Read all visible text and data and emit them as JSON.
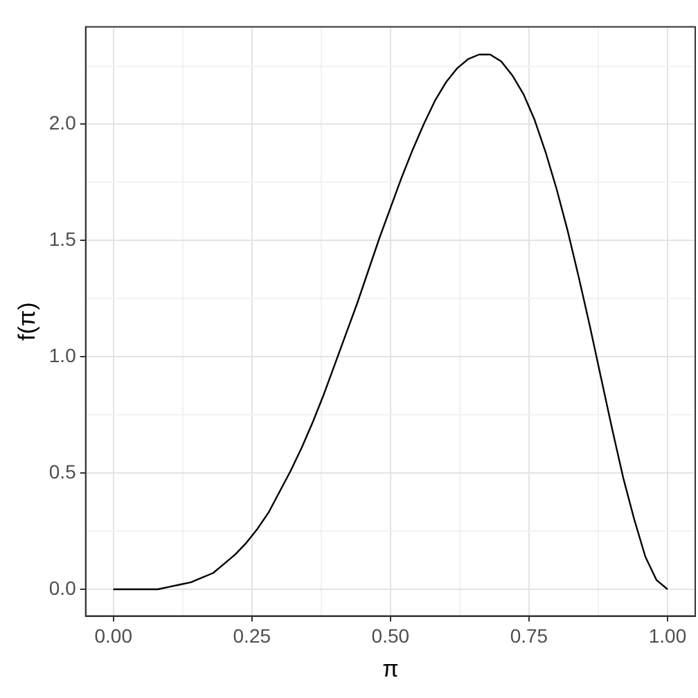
{
  "chart_data": {
    "type": "line",
    "xlabel": "π",
    "ylabel": "f(π)",
    "x": [
      0,
      0.02,
      0.04,
      0.06,
      0.08,
      0.1,
      0.12,
      0.14,
      0.16,
      0.18,
      0.2,
      0.22,
      0.24,
      0.26,
      0.28,
      0.3,
      0.32,
      0.34,
      0.36,
      0.38,
      0.4,
      0.42,
      0.44,
      0.46,
      0.48,
      0.5,
      0.52,
      0.54,
      0.56,
      0.58,
      0.6,
      0.62,
      0.64,
      0.66,
      0.68,
      0.7,
      0.72,
      0.74,
      0.76,
      0.78,
      0.8,
      0.82,
      0.84,
      0.86,
      0.88,
      0.9,
      0.92,
      0.94,
      0.96,
      0.98,
      1
    ],
    "series": [
      {
        "color": "#000000",
        "values": [
          0,
          0,
          0,
          0,
          0,
          0.01,
          0.02,
          0.03,
          0.05,
          0.07,
          0.11,
          0.15,
          0.2,
          0.26,
          0.33,
          0.42,
          0.51,
          0.61,
          0.72,
          0.84,
          0.97,
          1.1,
          1.23,
          1.37,
          1.51,
          1.64,
          1.77,
          1.89,
          2,
          2.1,
          2.18,
          2.24,
          2.28,
          2.3,
          2.3,
          2.27,
          2.21,
          2.13,
          2.02,
          1.88,
          1.72,
          1.54,
          1.34,
          1.13,
          0.91,
          0.69,
          0.48,
          0.3,
          0.14,
          0.04,
          0
        ]
      }
    ],
    "xlim": [
      -0.05,
      1.05
    ],
    "ylim": [
      -0.115,
      2.419
    ],
    "xticks": [
      {
        "value": 0,
        "label": "0.00"
      },
      {
        "value": 0.125,
        "label": null
      },
      {
        "value": 0.25,
        "label": "0.25"
      },
      {
        "value": 0.375,
        "label": null
      },
      {
        "value": 0.5,
        "label": "0.50"
      },
      {
        "value": 0.625,
        "label": null
      },
      {
        "value": 0.75,
        "label": "0.75"
      },
      {
        "value": 0.875,
        "label": null
      },
      {
        "value": 1,
        "label": "1.00"
      }
    ],
    "yticks": [
      {
        "value": 0,
        "label": "0.0"
      },
      {
        "value": 0.25,
        "label": null
      },
      {
        "value": 0.5,
        "label": "0.5"
      },
      {
        "value": 0.75,
        "label": null
      },
      {
        "value": 1,
        "label": "1.0"
      },
      {
        "value": 1.25,
        "label": null
      },
      {
        "value": 1.5,
        "label": "1.5"
      },
      {
        "value": 1.75,
        "label": null
      },
      {
        "value": 2,
        "label": "2.0"
      },
      {
        "value": 2.25,
        "label": null
      }
    ],
    "grid": true,
    "legend": false,
    "marker": "none",
    "line_style": "solid"
  }
}
